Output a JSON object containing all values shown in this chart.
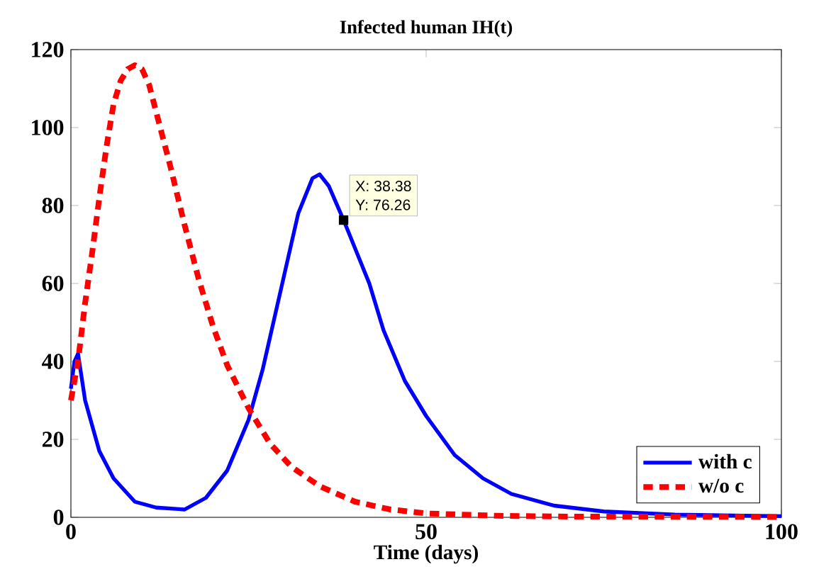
{
  "chart_data": {
    "type": "line",
    "title": "Infected human  IH(t)",
    "xlabel": "Time (days)",
    "xlim": [
      0,
      100
    ],
    "ylim": [
      0,
      120
    ],
    "xticks": [
      0,
      50,
      100
    ],
    "yticks": [
      0,
      20,
      40,
      60,
      80,
      100,
      120
    ],
    "grid": false,
    "legend": "bottom right",
    "series": [
      {
        "name": "with c",
        "color": "#0000ff",
        "line_style": "solid",
        "x": [
          0,
          0.5,
          1,
          2,
          4,
          6,
          9,
          12,
          16,
          19,
          22,
          25,
          27,
          30,
          32,
          34,
          35,
          36.3,
          38.38,
          42,
          44,
          47,
          50,
          54,
          58,
          62,
          68,
          75,
          85,
          100
        ],
        "values": [
          33,
          40,
          42,
          30,
          17,
          10,
          4,
          2.5,
          2,
          5,
          12,
          25,
          38,
          62,
          78,
          87,
          88,
          85,
          76.26,
          60,
          48,
          35,
          26,
          16,
          10,
          6,
          3,
          1.5,
          0.7,
          0.3
        ]
      },
      {
        "name": "w/o c",
        "color": "#ff0000",
        "line_style": "dashed",
        "x": [
          0,
          1,
          2,
          3,
          4,
          5,
          6,
          7,
          8,
          9,
          10,
          11,
          12,
          14,
          16,
          18,
          20,
          22,
          25,
          28,
          31,
          35,
          40,
          45,
          50,
          60,
          70,
          100
        ],
        "values": [
          30,
          40,
          55,
          68,
          82,
          95,
          106,
          112,
          115,
          116,
          115,
          111,
          104,
          90,
          75,
          61,
          49,
          39,
          28,
          19,
          13,
          8,
          4,
          2,
          1,
          0.4,
          0.2,
          0.1
        ]
      }
    ],
    "annotations": [
      {
        "text": "X: 38.38",
        "x": 38.38,
        "y": 76.26
      },
      {
        "text": "Y: 76.26",
        "x": 38.38,
        "y": 76.26
      }
    ]
  }
}
